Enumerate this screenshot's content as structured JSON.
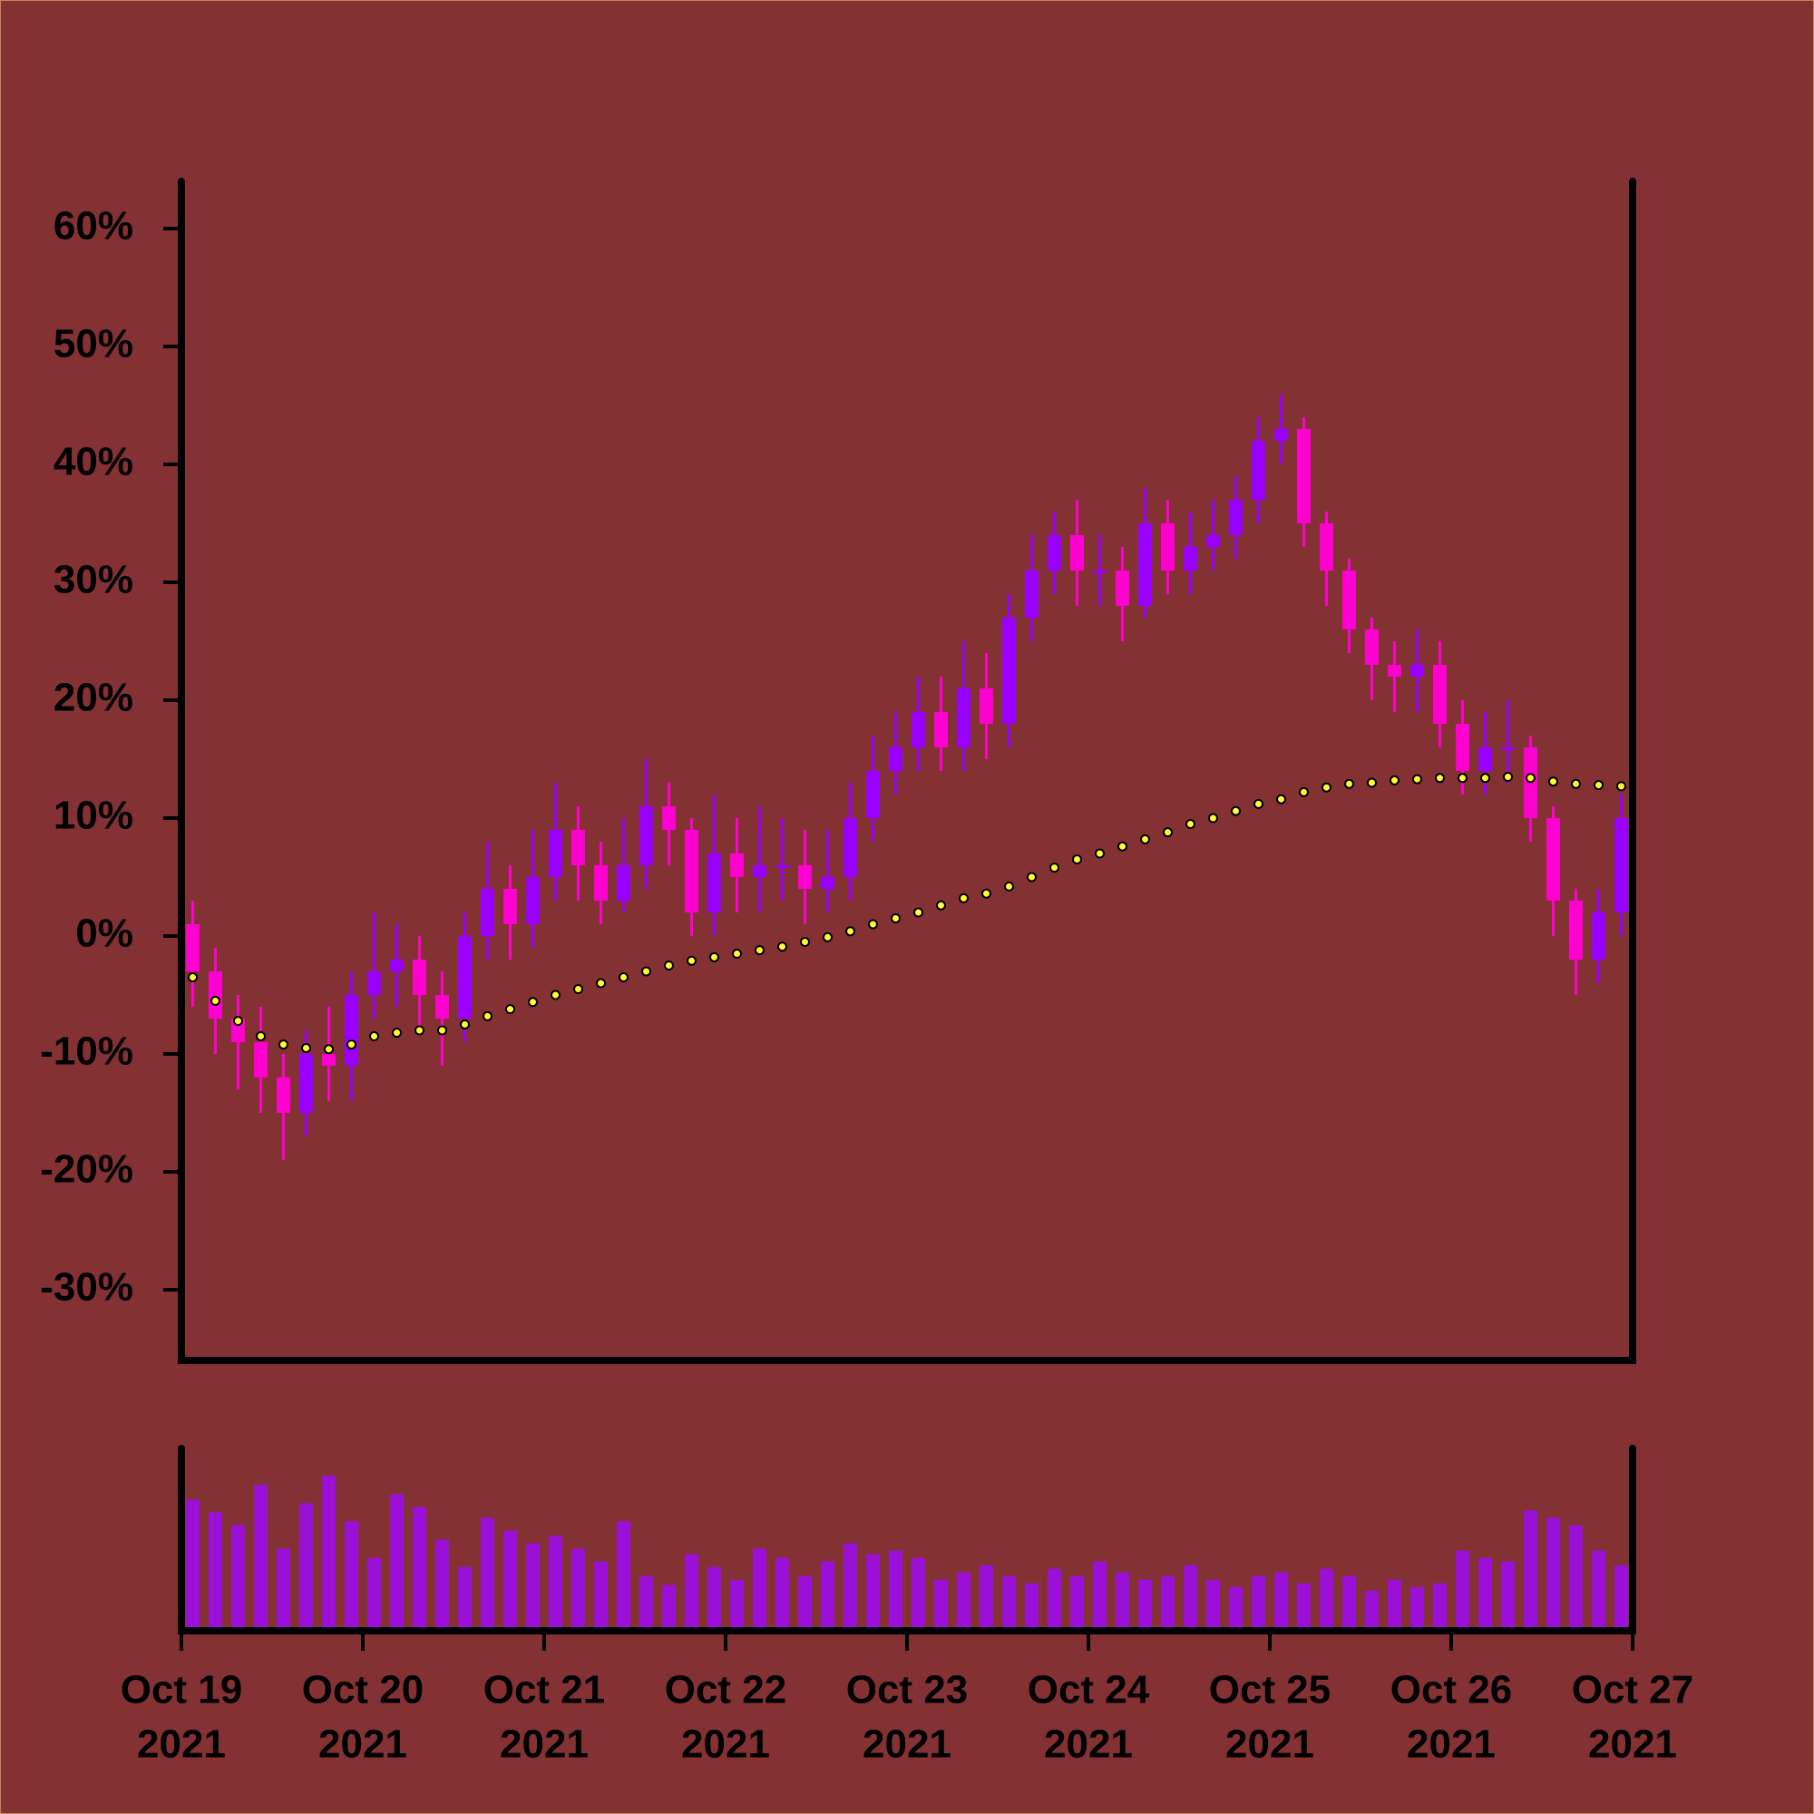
{
  "chart_data": {
    "type": "candlestick",
    "x": [
      "2021-10-19T01:30",
      "2021-10-19T04:30",
      "2021-10-19T07:30",
      "2021-10-19T10:30",
      "2021-10-19T13:30",
      "2021-10-19T16:30",
      "2021-10-19T19:30",
      "2021-10-19T22:30",
      "2021-10-20T01:30",
      "2021-10-20T04:30",
      "2021-10-20T07:30",
      "2021-10-20T10:30",
      "2021-10-20T13:30",
      "2021-10-20T16:30",
      "2021-10-20T19:30",
      "2021-10-20T22:30",
      "2021-10-21T01:30",
      "2021-10-21T04:30",
      "2021-10-21T07:30",
      "2021-10-21T10:30",
      "2021-10-21T13:30",
      "2021-10-21T16:30",
      "2021-10-21T19:30",
      "2021-10-21T22:30",
      "2021-10-22T01:30",
      "2021-10-22T04:30",
      "2021-10-22T07:30",
      "2021-10-22T10:30",
      "2021-10-22T13:30",
      "2021-10-22T16:30",
      "2021-10-22T19:30",
      "2021-10-22T22:30",
      "2021-10-23T01:30",
      "2021-10-23T04:30",
      "2021-10-23T07:30",
      "2021-10-23T10:30",
      "2021-10-23T13:30",
      "2021-10-23T16:30",
      "2021-10-23T19:30",
      "2021-10-23T22:30",
      "2021-10-24T01:30",
      "2021-10-24T04:30",
      "2021-10-24T07:30",
      "2021-10-24T10:30",
      "2021-10-24T13:30",
      "2021-10-24T16:30",
      "2021-10-24T19:30",
      "2021-10-24T22:30",
      "2021-10-25T01:30",
      "2021-10-25T04:30",
      "2021-10-25T07:30",
      "2021-10-25T10:30",
      "2021-10-25T13:30",
      "2021-10-25T16:30",
      "2021-10-25T19:30",
      "2021-10-25T22:30",
      "2021-10-26T01:30",
      "2021-10-26T04:30",
      "2021-10-26T07:30",
      "2021-10-26T10:30",
      "2021-10-26T13:30",
      "2021-10-26T16:30",
      "2021-10-26T19:30",
      "2021-10-26T22:30"
    ],
    "open": [
      1,
      -3,
      -7,
      -9,
      -12,
      -15,
      -10,
      -11,
      -5,
      -3,
      -2,
      -5,
      -7,
      0,
      4,
      1,
      5,
      9,
      6,
      3,
      6,
      11,
      9,
      2,
      7,
      5,
      6,
      6,
      4,
      5,
      10,
      14,
      16,
      19,
      16,
      21,
      18,
      27,
      31,
      34,
      31,
      31,
      28,
      35,
      31,
      33,
      34,
      37,
      42,
      43,
      35,
      31,
      26,
      23,
      22,
      23,
      18,
      14,
      16,
      16,
      10,
      3,
      -2,
      2
    ],
    "high": [
      3,
      -1,
      -5,
      -6,
      -10,
      -8,
      -6,
      -3,
      2,
      1,
      0,
      -3,
      2,
      8,
      6,
      9,
      13,
      11,
      8,
      10,
      15,
      13,
      10,
      12,
      10,
      11,
      10,
      9,
      9,
      13,
      17,
      19,
      22,
      22,
      25,
      24,
      29,
      34,
      36,
      37,
      34,
      33,
      38,
      37,
      36,
      37,
      39,
      44,
      46,
      44,
      36,
      32,
      27,
      25,
      26,
      25,
      20,
      19,
      20,
      17,
      11,
      4,
      4,
      12
    ],
    "low": [
      -6,
      -10,
      -13,
      -15,
      -19,
      -17,
      -14,
      -14,
      -7,
      -6,
      -8,
      -11,
      -9,
      -2,
      -2,
      -1,
      3,
      3,
      1,
      2,
      4,
      6,
      0,
      0,
      2,
      2,
      3,
      1,
      2,
      3,
      8,
      12,
      14,
      14,
      14,
      15,
      16,
      25,
      29,
      28,
      28,
      25,
      27,
      29,
      29,
      31,
      32,
      35,
      40,
      33,
      28,
      24,
      20,
      19,
      19,
      16,
      12,
      12,
      13,
      8,
      0,
      -5,
      -4,
      0
    ],
    "close": [
      -3,
      -7,
      -9,
      -12,
      -15,
      -10,
      -11,
      -5,
      -3,
      -2,
      -5,
      -7,
      0,
      4,
      1,
      5,
      9,
      6,
      3,
      6,
      11,
      9,
      2,
      7,
      5,
      6,
      6,
      4,
      5,
      10,
      14,
      16,
      19,
      16,
      21,
      18,
      27,
      31,
      34,
      31,
      31,
      28,
      35,
      31,
      33,
      34,
      37,
      42,
      43,
      35,
      31,
      26,
      23,
      22,
      23,
      18,
      14,
      16,
      16,
      10,
      3,
      -2,
      2,
      10
    ],
    "up_color": "#9a00ff",
    "down_color": "#ff00d0",
    "moving_average": {
      "color": "#ffff33",
      "values": [
        -3.5,
        -5.5,
        -7.2,
        -8.5,
        -9.2,
        -9.5,
        -9.6,
        -9.2,
        -8.5,
        -8.2,
        -8,
        -8,
        -7.5,
        -6.8,
        -6.2,
        -5.6,
        -5,
        -4.5,
        -4,
        -3.5,
        -3,
        -2.5,
        -2.1,
        -1.8,
        -1.5,
        -1.2,
        -0.9,
        -0.5,
        -0.1,
        0.4,
        1,
        1.5,
        2,
        2.6,
        3.2,
        3.6,
        4.2,
        5,
        5.8,
        6.5,
        7,
        7.6,
        8.2,
        8.8,
        9.5,
        10,
        10.6,
        11.2,
        11.6,
        12.2,
        12.6,
        12.9,
        13,
        13.2,
        13.3,
        13.4,
        13.4,
        13.4,
        13.5,
        13.4,
        13.1,
        12.9,
        12.8,
        12.7
      ]
    },
    "volume": {
      "color": "#9a10d8",
      "values": [
        72,
        65,
        58,
        80,
        45,
        70,
        85,
        60,
        40,
        75,
        68,
        50,
        35,
        62,
        55,
        48,
        52,
        45,
        38,
        60,
        30,
        25,
        42,
        35,
        28,
        45,
        40,
        30,
        38,
        48,
        42,
        44,
        40,
        28,
        32,
        36,
        30,
        26,
        34,
        30,
        38,
        32,
        28,
        30,
        36,
        28,
        24,
        30,
        32,
        26,
        34,
        30,
        22,
        28,
        24,
        26,
        44,
        40,
        38,
        66,
        62,
        58,
        44,
        36
      ],
      "ylim": [
        0,
        100
      ]
    },
    "xlim": [
      "2021-10-19T00:00",
      "2021-10-27T00:00"
    ],
    "xticks": [
      {
        "value": "2021-10-19T00:00",
        "label": [
          "Oct 19",
          "2021"
        ]
      },
      {
        "value": "2021-10-20T00:00",
        "label": [
          "Oct 20",
          "2021"
        ]
      },
      {
        "value": "2021-10-21T00:00",
        "label": [
          "Oct 21",
          "2021"
        ]
      },
      {
        "value": "2021-10-22T00:00",
        "label": [
          "Oct 22",
          "2021"
        ]
      },
      {
        "value": "2021-10-23T00:00",
        "label": [
          "Oct 23",
          "2021"
        ]
      },
      {
        "value": "2021-10-24T00:00",
        "label": [
          "Oct 24",
          "2021"
        ]
      },
      {
        "value": "2021-10-25T00:00",
        "label": [
          "Oct 25",
          "2021"
        ]
      },
      {
        "value": "2021-10-26T00:00",
        "label": [
          "Oct 26",
          "2021"
        ]
      },
      {
        "value": "2021-10-27T00:00",
        "label": [
          "Oct 27",
          "2021"
        ]
      }
    ],
    "ylim": [
      -36,
      64
    ],
    "yticks": [
      {
        "value": -30,
        "label": "-30%"
      },
      {
        "value": -20,
        "label": "-20%"
      },
      {
        "value": -10,
        "label": "-10%"
      },
      {
        "value": 0,
        "label": "0%"
      },
      {
        "value": 10,
        "label": "10%"
      },
      {
        "value": 20,
        "label": "20%"
      },
      {
        "value": 30,
        "label": "30%"
      },
      {
        "value": 40,
        "label": "40%"
      },
      {
        "value": 50,
        "label": "50%"
      },
      {
        "value": 60,
        "label": "60%"
      }
    ]
  }
}
